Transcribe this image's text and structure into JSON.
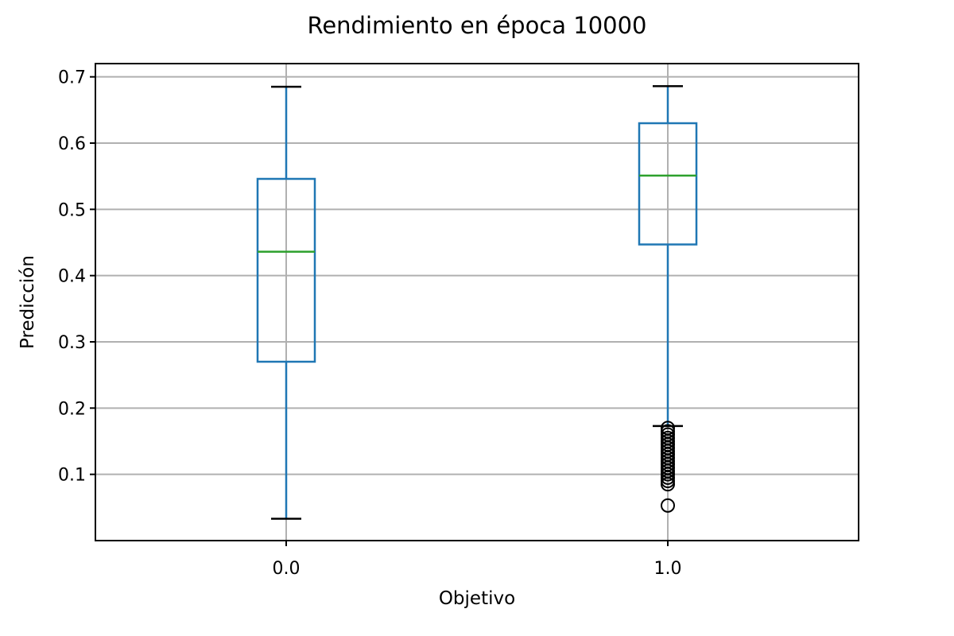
{
  "chart_data": {
    "type": "box",
    "title": "Rendimiento en época 10000",
    "xlabel": "Objetivo",
    "ylabel": "Predicción",
    "categories": [
      "0.0",
      "1.0"
    ],
    "ylim": [
      0.0,
      0.72
    ],
    "yticks": [
      0.1,
      0.2,
      0.3,
      0.4,
      0.5,
      0.6,
      0.7
    ],
    "ytick_labels": [
      "0.1",
      "0.2",
      "0.3",
      "0.4",
      "0.5",
      "0.6",
      "0.7"
    ],
    "grid": true,
    "boxes": [
      {
        "category": "0.0",
        "whisker_low": 0.033,
        "q1": 0.27,
        "median": 0.436,
        "q3": 0.546,
        "whisker_high": 0.685,
        "outliers": []
      },
      {
        "category": "1.0",
        "whisker_low": 0.173,
        "q1": 0.447,
        "median": 0.551,
        "q3": 0.63,
        "whisker_high": 0.686,
        "outliers": [
          0.053,
          0.085,
          0.09,
          0.095,
          0.1,
          0.105,
          0.11,
          0.115,
          0.12,
          0.125,
          0.13,
          0.135,
          0.14,
          0.145,
          0.15,
          0.155,
          0.16,
          0.165,
          0.17
        ]
      }
    ],
    "colors": {
      "box": "#1f77b4",
      "median": "#2ca02c",
      "whisker_cap": "#000000",
      "outlier": "#000000",
      "grid": "#b0b0b0"
    }
  }
}
